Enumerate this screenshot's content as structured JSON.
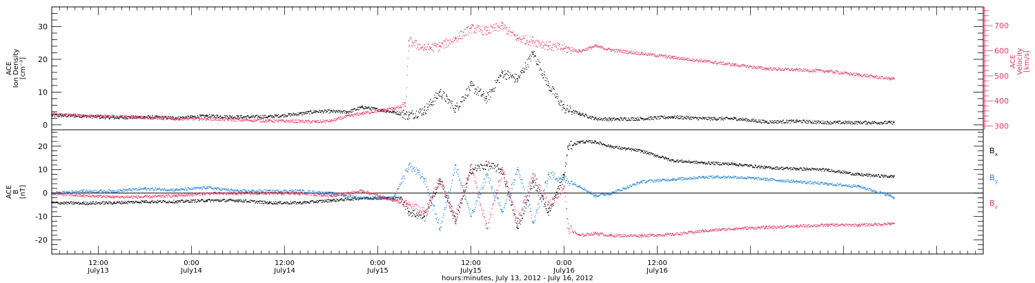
{
  "chart_data": [
    {
      "type": "scatter",
      "panel": "top",
      "left_axis": {
        "label_lines": [
          "ACE",
          "Ion Density",
          "[cm⁻³]"
        ],
        "ylim": [
          -1.5,
          36
        ],
        "ticks": [
          0,
          10,
          20,
          30
        ],
        "tick_labels": [
          "0",
          "10",
          "20",
          "30"
        ]
      },
      "right_axis": {
        "label_lines": [
          "ACE",
          "Velocity",
          "[km/s]"
        ],
        "ylim": [
          285,
          775
        ],
        "ticks": [
          300,
          400,
          500,
          600,
          700
        ],
        "tick_labels": [
          "300",
          "400",
          "500",
          "600",
          "700"
        ],
        "color": "#e8335f"
      },
      "series": [
        {
          "axis": "left",
          "color": "#000000",
          "x_hours": [
            0,
            4,
            8,
            12,
            16,
            20,
            24,
            28,
            32,
            34,
            36,
            38,
            40,
            44,
            46,
            48,
            50,
            52,
            54,
            56,
            58,
            60,
            62,
            64,
            66,
            68,
            70,
            72,
            76,
            80,
            84,
            88,
            92,
            96,
            100,
            104,
            108,
            108.5
          ],
          "values": [
            3,
            2.8,
            2.3,
            2.5,
            2.2,
            2.8,
            2.5,
            2.6,
            3.5,
            4.2,
            4.2,
            4,
            5.5,
            4,
            3,
            4.5,
            10,
            5,
            12,
            8,
            16,
            14,
            22,
            12,
            5,
            3.5,
            2,
            1.8,
            2,
            2.5,
            2,
            2,
            1,
            1.2,
            0.8,
            0.8,
            0.8,
            0.8
          ]
        },
        {
          "axis": "right",
          "color": "#e8335f",
          "x_hours": [
            0,
            4,
            8,
            12,
            16,
            20,
            24,
            28,
            32,
            34,
            36,
            38,
            40,
            44,
            45.5,
            46,
            48,
            50,
            52,
            54,
            56,
            58,
            60,
            62,
            64,
            66,
            68,
            70,
            72,
            76,
            80,
            84,
            88,
            92,
            96,
            100,
            104,
            108,
            108.5
          ],
          "values": [
            350,
            342,
            340,
            335,
            330,
            330,
            326,
            322,
            320,
            318,
            322,
            340,
            352,
            372,
            380,
            640,
            610,
            620,
            650,
            690,
            680,
            700,
            650,
            640,
            620,
            610,
            600,
            620,
            605,
            590,
            575,
            560,
            545,
            530,
            525,
            520,
            505,
            490,
            490
          ]
        }
      ]
    },
    {
      "type": "scatter",
      "panel": "bottom",
      "left_axis": {
        "label_lines": [
          "ACE",
          "B",
          "[nT]"
        ],
        "ylim": [
          -26,
          27
        ],
        "ticks": [
          -20,
          -10,
          0,
          10,
          20
        ],
        "tick_labels": [
          "-20",
          "-10",
          "0",
          "10",
          "20"
        ]
      },
      "zero_line": true,
      "series": [
        {
          "name": "Bx",
          "color": "#000000",
          "x_hours": [
            0,
            4,
            8,
            12,
            16,
            20,
            24,
            28,
            32,
            36,
            40,
            44,
            45,
            46,
            48,
            50,
            52,
            54,
            56,
            58,
            60,
            62,
            64,
            66,
            66.5,
            68,
            70,
            72,
            76,
            80,
            84,
            88,
            92,
            96,
            100,
            104,
            108,
            108.5
          ],
          "values": [
            -4,
            -4.2,
            -4,
            -3.5,
            -3.5,
            -3,
            -3,
            -4,
            -4,
            -3,
            -2,
            -2,
            -2,
            -8,
            -10,
            6,
            -12,
            10,
            12,
            10,
            -15,
            5,
            -8,
            8,
            20,
            22,
            22,
            20,
            18,
            14,
            13,
            12.5,
            11,
            10.5,
            10,
            8,
            7.2,
            7.2
          ]
        },
        {
          "name": "By",
          "color": "#1a82dc",
          "x_hours": [
            0,
            4,
            8,
            12,
            16,
            20,
            24,
            28,
            32,
            36,
            40,
            44,
            46,
            48,
            50,
            52,
            54,
            56,
            58,
            60,
            62,
            64,
            66,
            68,
            70,
            72,
            76,
            80,
            84,
            88,
            92,
            96,
            100,
            104,
            108,
            108.5
          ],
          "values": [
            0,
            1,
            1,
            2,
            1.5,
            2.5,
            1,
            1,
            1,
            0,
            -2,
            -2,
            12,
            6,
            -15,
            12,
            -10,
            8,
            -8,
            10,
            -12,
            8,
            6,
            3,
            -1,
            0,
            5,
            6,
            7,
            7,
            6,
            5,
            4,
            3,
            -1,
            -2
          ]
        },
        {
          "name": "Bz",
          "color": "#e8335f",
          "x_hours": [
            0,
            4,
            8,
            12,
            16,
            20,
            24,
            28,
            32,
            36,
            40,
            44,
            46,
            48,
            50,
            52,
            54,
            56,
            58,
            60,
            62,
            64,
            66,
            66.5,
            68,
            70,
            72,
            76,
            80,
            84,
            88,
            92,
            96,
            100,
            104,
            108,
            108.5
          ],
          "values": [
            0,
            -1,
            -1.5,
            -1.5,
            -1,
            0,
            0,
            0,
            0,
            -1,
            1,
            -3,
            -5,
            -8,
            5,
            -10,
            12,
            -15,
            10,
            -12,
            8,
            -5,
            3,
            -15,
            -18,
            -17,
            -18,
            -18,
            -17.5,
            -16,
            -15,
            -14.5,
            -14,
            -13.5,
            -13.5,
            -13,
            -13
          ]
        }
      ],
      "legend": [
        {
          "name": "Bx",
          "base": "B",
          "sub": "x",
          "color": "#000000"
        },
        {
          "name": "By",
          "base": "B",
          "sub": "y",
          "color": "#1a82dc"
        },
        {
          "name": "Bz",
          "base": "B",
          "sub": "z",
          "color": "#e8335f"
        }
      ]
    }
  ],
  "x_axis": {
    "range_hours": [
      0,
      120
    ],
    "major_ticks": [
      {
        "hour": 6,
        "time": "12:00",
        "day": "July13"
      },
      {
        "hour": 18,
        "time": "0:00",
        "day": "July14"
      },
      {
        "hour": 30,
        "time": "12:00",
        "day": "July14"
      },
      {
        "hour": 42,
        "time": "0:00",
        "day": "July15"
      },
      {
        "hour": 54,
        "time": "12:00",
        "day": "July15"
      },
      {
        "hour": 66,
        "time": "0:00",
        "day": "July16"
      },
      {
        "hour": 78,
        "time": "12:00",
        "day": "July16"
      }
    ],
    "label": "hours:minutes, July 13, 2012 - July 16, 2012"
  }
}
